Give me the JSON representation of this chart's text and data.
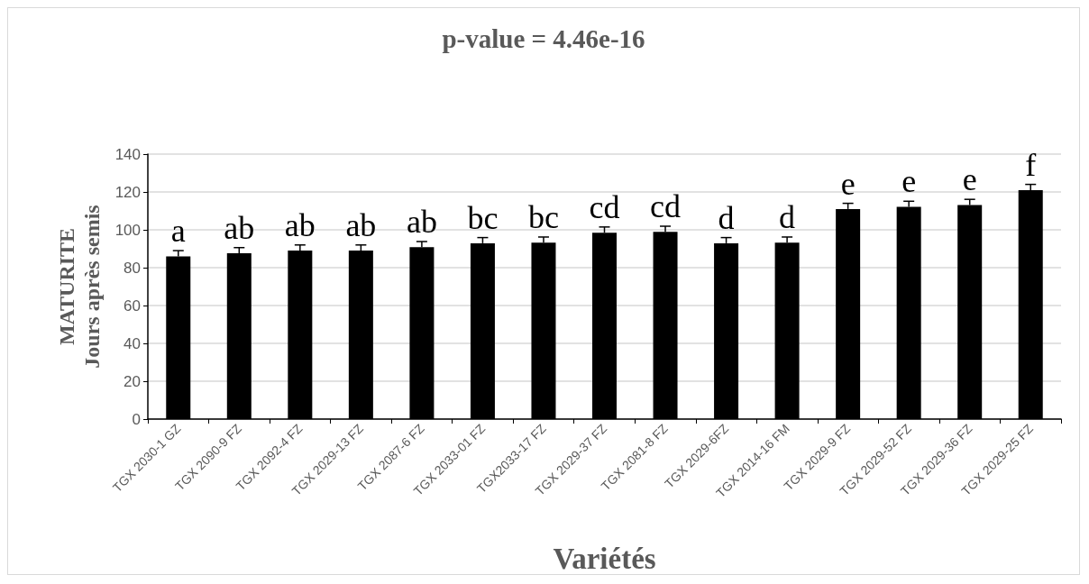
{
  "chart_data": {
    "type": "bar",
    "title": "p-value = 4.46e-16",
    "xlabel": "Variétés",
    "ylabel": "MATURITE\nJours après semis",
    "categories": [
      "TGX 2030-1 GZ",
      "TGX 2090-9 FZ",
      "TGX 2092-4 FZ",
      "TGX 2029-13 FZ",
      "TGX 2087-6 FZ",
      "TGX 2033-01 FZ",
      "TGX2033-17 FZ",
      "TGX 2029-37 FZ",
      "TGX 2081-8 FZ",
      "TGX 2029-6FZ",
      "TGX 2014-16 FM",
      "TGX 2029-9 FZ",
      "TGX 2029-52 FZ",
      "TGX 2029-36 FZ",
      "TGX 2029-25 FZ"
    ],
    "values": [
      86,
      87.6,
      89,
      89,
      90.8,
      92.9,
      93.2,
      98.5,
      98.9,
      92.9,
      93.2,
      111,
      112.1,
      113.1,
      121
    ],
    "errors": [
      3,
      3,
      3,
      3,
      3,
      3,
      3,
      3,
      3,
      3,
      3,
      3,
      3,
      3,
      3
    ],
    "color": "#000000",
    "ylim": [
      0,
      140
    ],
    "yticks": [
      0,
      20,
      40,
      60,
      80,
      100,
      120,
      140
    ],
    "grid": "y",
    "annotations": [
      {
        "text": "a",
        "x": "TGX 2030-1 GZ",
        "y": 86
      },
      {
        "text": "ab",
        "x": "TGX 2090-9 FZ",
        "y": 87.6
      },
      {
        "text": "ab",
        "x": "TGX 2092-4 FZ",
        "y": 89
      },
      {
        "text": "ab",
        "x": "TGX 2029-13 FZ",
        "y": 89
      },
      {
        "text": "ab",
        "x": "TGX 2087-6 FZ",
        "y": 90.8
      },
      {
        "text": "bc",
        "x": "TGX 2033-01 FZ",
        "y": 92.9
      },
      {
        "text": "bc",
        "x": "TGX2033-17 FZ",
        "y": 93.2
      },
      {
        "text": "cd",
        "x": "TGX 2029-37 FZ",
        "y": 98.5
      },
      {
        "text": "cd",
        "x": "TGX 2081-8 FZ",
        "y": 98.9
      },
      {
        "text": "d",
        "x": "TGX 2029-6FZ",
        "y": 92.9
      },
      {
        "text": "d",
        "x": "TGX 2014-16 FM",
        "y": 93.2
      },
      {
        "text": "e",
        "x": "TGX 2029-9 FZ",
        "y": 111
      },
      {
        "text": "e",
        "x": "TGX 2029-52 FZ",
        "y": 112.1
      },
      {
        "text": "e",
        "x": "TGX 2029-36 FZ",
        "y": 113.1
      },
      {
        "text": "f",
        "x": "TGX 2029-25 FZ",
        "y": 121
      }
    ]
  }
}
